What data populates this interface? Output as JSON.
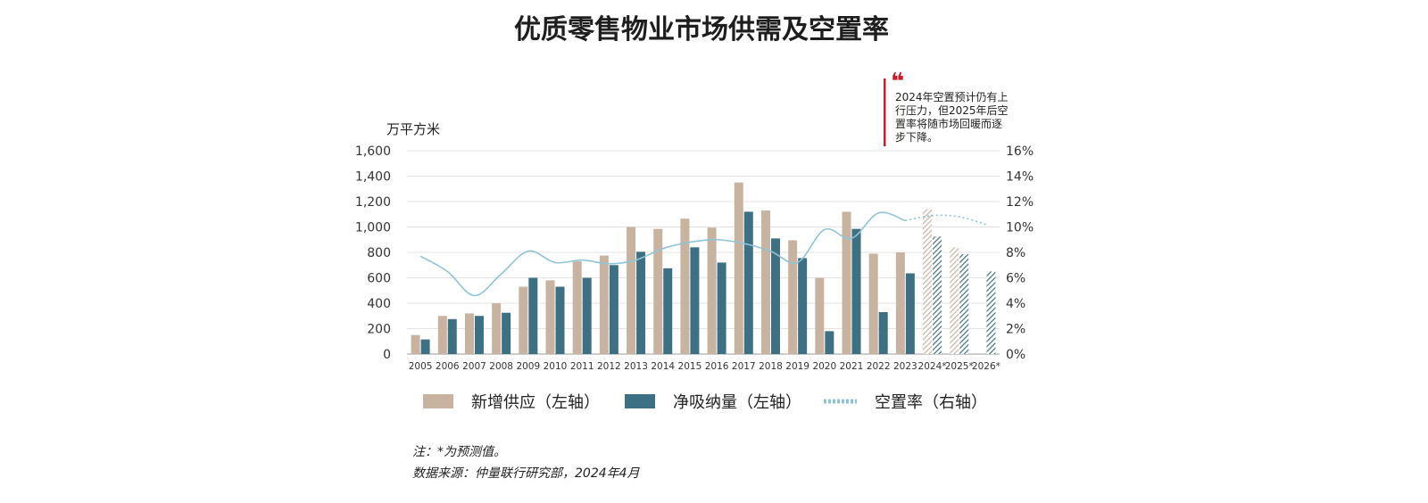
{
  "title": "优质零售物业市场供需及空置率",
  "unit_label": "万平方米",
  "annotation": {
    "quote_mark": "❝",
    "lines": [
      "2024年空置预计仍有上",
      "行压力，但2025年后空",
      "置率将随市场回暖而逐",
      "步下降。"
    ]
  },
  "footer": {
    "note": "注：*为预测值。",
    "source": "数据来源：仲量联行研究部，2024年4月"
  },
  "colors": {
    "supply": "#c8b3a1",
    "absorption": "#3e7083",
    "vacancy": "#8fc4d8",
    "accent": "#cc1f2c"
  },
  "chart_data": {
    "type": "bar",
    "title": "优质零售物业市场供需及空置率",
    "categories": [
      "2005",
      "2006",
      "2007",
      "2008",
      "2009",
      "2010",
      "2011",
      "2012",
      "2013",
      "2014",
      "2015",
      "2016",
      "2017",
      "2018",
      "2019",
      "2020",
      "2021",
      "2022",
      "2023",
      "2024*",
      "2025*",
      "2026*"
    ],
    "forecast_from_index": 19,
    "y_left": {
      "label": "万平方米",
      "lim": [
        0,
        1600
      ],
      "ticks": [
        0,
        200,
        400,
        600,
        800,
        1000,
        1200,
        1400,
        1600
      ],
      "tick_labels": [
        "0",
        "200",
        "400",
        "600",
        "800",
        "1,000",
        "1,200",
        "1,400",
        "1,600"
      ]
    },
    "y_right": {
      "lim": [
        0,
        16
      ],
      "ticks": [
        0,
        2,
        4,
        6,
        8,
        10,
        12,
        14,
        16
      ],
      "tick_labels": [
        "0%",
        "2%",
        "4%",
        "6%",
        "8%",
        "10%",
        "12%",
        "14%",
        "16%"
      ]
    },
    "grid": true,
    "legend_position": "bottom",
    "series": [
      {
        "name": "新增供应（左轴）",
        "kind": "bar",
        "axis": "left",
        "values": [
          150,
          300,
          320,
          400,
          530,
          580,
          730,
          775,
          1000,
          985,
          1065,
          995,
          1350,
          1130,
          895,
          600,
          1120,
          790,
          800,
          1140,
          840,
          0
        ]
      },
      {
        "name": "净吸纳量（左轴）",
        "kind": "bar",
        "axis": "left",
        "values": [
          115,
          275,
          300,
          325,
          600,
          530,
          600,
          700,
          805,
          675,
          840,
          720,
          1120,
          910,
          755,
          180,
          985,
          330,
          635,
          925,
          785,
          650
        ]
      },
      {
        "name": "空置率（右轴）",
        "kind": "line",
        "axis": "right",
        "values": [
          7.7,
          6.5,
          4.6,
          6.3,
          8.1,
          7.2,
          7.4,
          7.1,
          7.4,
          8.3,
          8.8,
          9.0,
          8.7,
          8.1,
          7.2,
          9.8,
          9.1,
          11.1,
          10.5,
          10.9,
          10.8,
          10.2
        ]
      }
    ]
  }
}
